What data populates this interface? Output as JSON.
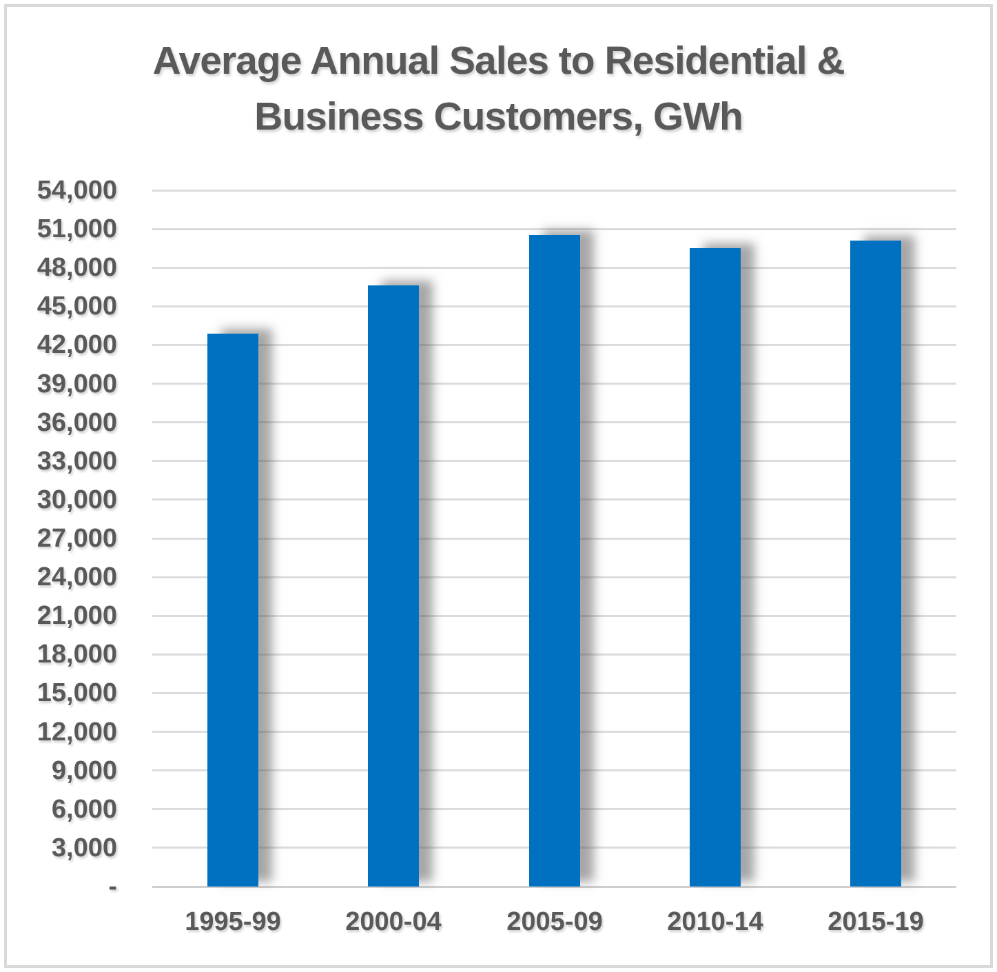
{
  "chart_data": {
    "type": "bar",
    "title": "Average Annual Sales to Residential & Business Customers, GWh",
    "title_lines": [
      "Average Annual Sales to Residential &",
      "Business Customers, GWh"
    ],
    "categories": [
      "1995-99",
      "2000-04",
      "2005-09",
      "2010-14",
      "2015-19"
    ],
    "values": [
      42900,
      46600,
      50500,
      49500,
      50100
    ],
    "xlabel": "",
    "ylabel": "",
    "ylim": [
      0,
      54000
    ],
    "ytick_step": 3000,
    "ytick_labels": [
      "-",
      "3,000",
      "6,000",
      "9,000",
      "12,000",
      "15,000",
      "18,000",
      "21,000",
      "24,000",
      "27,000",
      "30,000",
      "33,000",
      "36,000",
      "39,000",
      "42,000",
      "45,000",
      "48,000",
      "51,000",
      "54,000"
    ],
    "grid": true,
    "legend_position": "none",
    "data_labels": false,
    "colors": {
      "bar": "#0070C0",
      "gridline": "#DCDCDC",
      "text": "#595959",
      "frame_border": "#D9D9D9",
      "background": "#FFFFFF"
    }
  }
}
